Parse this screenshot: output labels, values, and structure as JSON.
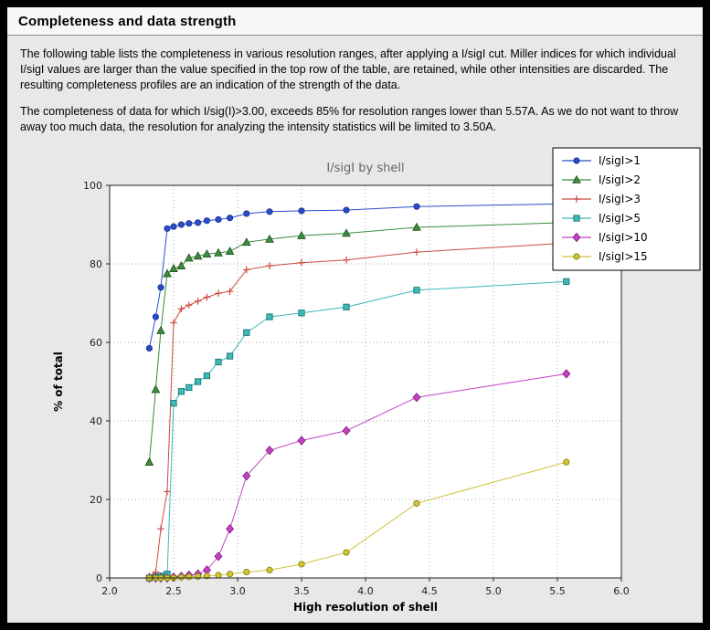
{
  "header": {
    "title": "Completeness and data strength"
  },
  "body": {
    "paragraph1": "The following table lists the completeness in various resolution ranges, after applying a I/sigI cut. Miller indices for which individual I/sigI values are larger than the value specified in the top row of the table, are retained, while other intensities are discarded. The resulting completeness profiles are an indication of the strength of the data.",
    "paragraph2": "The completeness of data for which I/sig(I)>3.00, exceeds  85% for resolution ranges lower than 5.57A. As we do not want to throw away too much data, the resolution for analyzing the intensity statistics will be limited to 3.50A."
  },
  "chart_data": {
    "type": "line",
    "title": "I/sigI by shell",
    "xlabel": "High resolution of shell",
    "ylabel": "% of total",
    "xlim": [
      2.0,
      6.0
    ],
    "ylim": [
      0,
      100
    ],
    "xticks": [
      "2.0",
      "2.5",
      "3.0",
      "3.5",
      "4.0",
      "4.5",
      "5.0",
      "5.5",
      "6.0"
    ],
    "yticks": [
      0,
      20,
      40,
      60,
      80,
      100
    ],
    "grid": true,
    "legend_position": "upper right",
    "plot_bg": "#ffffff",
    "figure_bg": "#e8e8e8",
    "x": [
      2.31,
      2.36,
      2.4,
      2.45,
      2.5,
      2.56,
      2.62,
      2.69,
      2.76,
      2.85,
      2.94,
      3.07,
      3.25,
      3.5,
      3.85,
      4.4,
      5.57
    ],
    "series": [
      {
        "name": "I/sigI>1",
        "color": "#2b4cc8",
        "edge": "#1b2f8f",
        "marker": "circle",
        "values": [
          58.5,
          66.5,
          74.0,
          89.0,
          89.5,
          90.0,
          90.3,
          90.5,
          91.0,
          91.3,
          91.7,
          92.8,
          93.3,
          93.5,
          93.7,
          94.6,
          95.3
        ]
      },
      {
        "name": "I/sigI>2",
        "color": "#3c8c3c",
        "edge": "#205220",
        "marker": "triangle",
        "values": [
          29.5,
          48.0,
          63.0,
          77.5,
          78.8,
          79.5,
          81.5,
          82.0,
          82.5,
          82.8,
          83.2,
          85.5,
          86.3,
          87.2,
          87.8,
          89.3,
          90.5
        ]
      },
      {
        "name": "I/sigI>3",
        "color": "#cc4a42",
        "edge": "#cc4a42",
        "marker": "plus",
        "values": [
          0.5,
          1.5,
          12.5,
          22.0,
          65.0,
          68.5,
          69.5,
          70.5,
          71.5,
          72.5,
          73.0,
          78.5,
          79.5,
          80.3,
          81.0,
          83.0,
          85.3
        ]
      },
      {
        "name": "I/sigI>5",
        "color": "#3fb8b8",
        "edge": "#0e6e6e",
        "marker": "square",
        "values": [
          0.0,
          0.3,
          0.5,
          1.0,
          44.5,
          47.5,
          48.5,
          50.0,
          51.5,
          55.0,
          56.5,
          62.5,
          66.5,
          67.5,
          69.0,
          73.3,
          75.5
        ]
      },
      {
        "name": "I/sigI>10",
        "color": "#c341c3",
        "edge": "#7c1d7c",
        "marker": "diamond",
        "values": [
          0.0,
          0.0,
          0.0,
          0.0,
          0.2,
          0.4,
          0.7,
          1.0,
          2.0,
          5.5,
          12.5,
          26.0,
          32.5,
          35.0,
          37.5,
          46.0,
          52.0
        ]
      },
      {
        "name": "I/sigI>15",
        "color": "#cfc43a",
        "edge": "#857b00",
        "marker": "circle",
        "values": [
          0.0,
          0.0,
          0.0,
          0.0,
          0.0,
          0.2,
          0.3,
          0.4,
          0.5,
          0.7,
          1.0,
          1.5,
          2.0,
          3.5,
          6.5,
          19.0,
          29.5
        ]
      }
    ]
  }
}
